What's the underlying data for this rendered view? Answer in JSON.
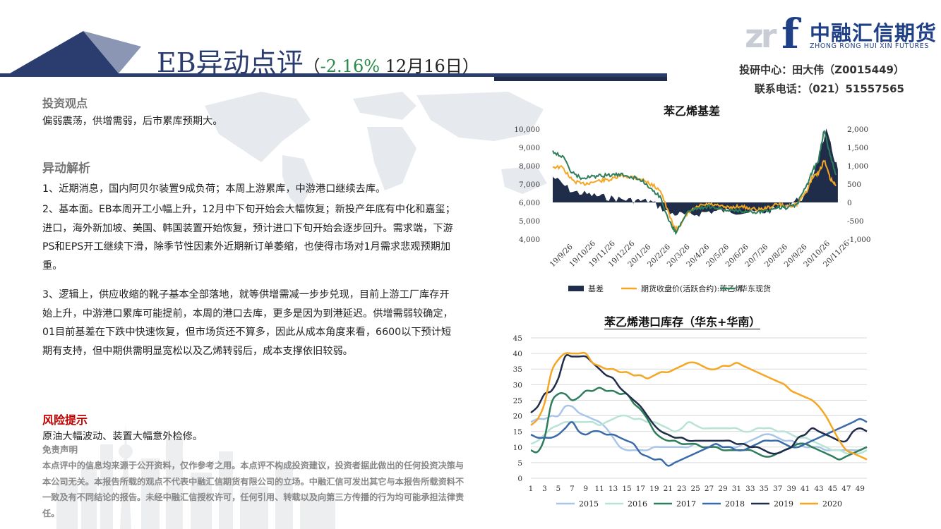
{
  "header": {
    "title_main": "EB异动点评",
    "title_paren_open": "（",
    "title_pct": "-2.16%",
    "title_date": " 12月16日",
    "title_paren_close": "）",
    "logo_mark": "zr",
    "logo_f": "f",
    "logo_cn": "中融汇信期货",
    "logo_en": "ZHONG RONG HUI XIN FUTURES",
    "contact_line1": "投研中心：田大伟（Z0015449）",
    "contact_line2": "联系电话：（021）51557565"
  },
  "content": {
    "view_heading": "投资观点",
    "view_text": "偏弱震荡，供增需弱，后市累库预期大。",
    "analysis_heading": "异动解析",
    "analysis_p1": "1、近期消息，国内阿贝尔装置9成负荷；本周上游累库，中游港口继续去库。",
    "analysis_p2": "2、基本面。EB本周开工小幅上升，12月中下旬开始会大幅恢复；新投产年底有中化和嘉玺；进口，海外新加坡、美国、韩国装置开始恢复，预计进口下旬开始会逐步回升。需求端，下游PS和EPS开工继续下滑，除季节性因素外近期新订单萎缩，也使得市场对1月需求悲观预期加重。",
    "analysis_p3": "3、逻辑上，供应收缩的靴子基本全部落地，就等供增需减一步步兑现，目前上游工厂库存开始上升，中游港口累库可能提前，本周的港口去库，更多是因为到港延迟。供增需弱较确定， 01目前基差在下跌中快速恢复，但市场货还不算多，因此从成本角度来看，6600以下预计短期有支持，但中期供需明显宽松以及乙烯转弱后，成本支撑依旧较弱。",
    "risk_heading": "风险提示",
    "risk_text": "原油大幅波动、装置大幅意外检修。",
    "disclaimer_heading": "免责声明",
    "disclaimer_text": "本点评中的信息均来源于公开资料，仅作参考之用。本点评不构成投资建议，投资者据此做出的任何投资决策与本公司无关。本报告所载的观点不代表中融汇信期货有限公司的立场。中融汇信可发出其它与本报告所载资料不一致及有不同结论的报告。未经中融汇信授权许可，任何引用、转载以及向第三方传播的行为均可能承担法律责任。"
  },
  "colors": {
    "navy": "#1f2d4a",
    "orange": "#f5a623",
    "green": "#2e7d5b",
    "risk_red": "#c00000",
    "brand_blue": "#1f3f86"
  },
  "chart_data": [
    {
      "type": "line",
      "title": "苯乙烯基差",
      "x_tick_labels": [
        "19/9/26",
        "19/10/26",
        "19/11/26",
        "19/12/26",
        "20/1/26",
        "20/2/26",
        "20/3/26",
        "20/4/26",
        "20/5/26",
        "20/6/26",
        "20/7/26",
        "20/8/26",
        "20/9/26",
        "20/10/26",
        "20/11/26"
      ],
      "y_left_ticks": [
        "10,000",
        "9,000",
        "8,000",
        "7,000",
        "6,000",
        "5,000",
        "4,000"
      ],
      "y_right_ticks": [
        "2,000",
        "1,500",
        "1,000",
        "500",
        "0",
        "-500",
        "-1,000"
      ],
      "ylim_left": [
        4000,
        10000
      ],
      "ylim_right": [
        -1000,
        2000
      ],
      "legend_position": "bottom",
      "series": [
        {
          "name": "基差",
          "kind": "area",
          "axis": "right",
          "x": [
            0,
            1,
            2,
            3,
            4,
            5,
            6,
            7,
            8,
            9,
            10,
            11,
            12,
            13,
            14,
            14.6
          ],
          "values": [
            700,
            300,
            200,
            120,
            60,
            30,
            -300,
            -350,
            -250,
            -230,
            -270,
            -250,
            -60,
            180,
            1950,
            900
          ]
        },
        {
          "name": "期货收盘价(活跃合约):苯乙烯",
          "kind": "line",
          "axis": "left",
          "x": [
            0,
            0.5,
            1,
            1.5,
            2,
            2.5,
            3,
            3.5,
            4,
            4.5,
            5,
            5.5,
            6,
            6.3,
            6.6,
            7,
            7.5,
            8,
            8.5,
            9,
            9.5,
            10,
            10.5,
            11,
            11.5,
            12,
            12.5,
            13,
            13.3,
            13.6,
            13.9,
            14.2,
            14.5
          ],
          "values": [
            7950,
            7900,
            7200,
            7000,
            7100,
            7200,
            7250,
            7450,
            7400,
            7300,
            7000,
            6700,
            5200,
            4500,
            4900,
            5500,
            5800,
            5900,
            5800,
            5700,
            5800,
            5700,
            5600,
            5700,
            5900,
            5800,
            5900,
            6600,
            7400,
            7600,
            8300,
            7300,
            6900
          ]
        },
        {
          "name": "华东现货",
          "kind": "line",
          "axis": "left",
          "x": [
            0,
            0.5,
            1,
            1.5,
            2,
            2.5,
            3,
            3.5,
            4,
            4.5,
            5,
            5.5,
            6,
            6.3,
            6.6,
            7,
            7.5,
            8,
            8.5,
            9,
            9.5,
            10,
            10.5,
            11,
            11.5,
            12,
            12.5,
            13,
            13.3,
            13.6,
            13.9,
            14.2,
            14.5
          ],
          "values": [
            8800,
            8500,
            7600,
            7300,
            7400,
            7450,
            7500,
            7500,
            7400,
            7250,
            6800,
            6300,
            4900,
            4400,
            4900,
            5600,
            5700,
            5800,
            5650,
            5550,
            5550,
            5500,
            5500,
            5550,
            5750,
            5700,
            5900,
            6900,
            7700,
            8300,
            9950,
            8600,
            7500
          ]
        }
      ]
    },
    {
      "type": "line",
      "title": "苯乙烯港口库存（华东+华南）",
      "x_tick_labels": [
        "1",
        "3",
        "5",
        "7",
        "9",
        "11",
        "13",
        "15",
        "17",
        "19",
        "21",
        "23",
        "25",
        "27",
        "29",
        "31",
        "33",
        "35",
        "37",
        "39",
        "41",
        "43",
        "45",
        "47",
        "49"
      ],
      "y_ticks": [
        "45",
        "40",
        "35",
        "30",
        "25",
        "20",
        "15",
        "10",
        "5",
        "0"
      ],
      "ylim": [
        0,
        45
      ],
      "xlim": [
        1,
        50
      ],
      "legend_position": "bottom",
      "series": [
        {
          "name": "2015",
          "values": [
            18,
            19,
            19,
            20,
            20,
            23,
            23,
            21,
            20,
            19,
            18,
            16,
            13,
            10,
            9,
            9,
            9,
            9,
            10,
            10,
            10,
            10,
            10,
            10,
            11,
            10,
            10,
            10,
            10,
            10,
            10,
            11,
            12,
            13,
            14,
            14,
            13,
            12,
            12,
            11,
            10,
            10,
            10,
            9,
            9,
            9,
            9,
            9,
            9,
            10
          ]
        },
        {
          "name": "2016",
          "values": [
            11,
            12,
            14,
            16,
            17,
            18,
            18,
            18,
            18,
            18,
            17,
            18,
            19,
            20,
            20,
            19,
            19,
            18,
            18,
            17,
            16,
            15,
            16,
            18,
            17,
            16,
            16,
            16,
            16,
            16,
            16,
            15,
            15,
            16,
            16,
            16,
            15,
            15,
            14,
            13,
            13,
            12,
            11,
            10,
            9,
            9,
            8,
            8,
            8,
            9
          ]
        },
        {
          "name": "2017",
          "values": [
            9,
            8.5,
            13,
            24,
            27,
            27,
            25,
            26,
            28,
            28,
            29,
            28,
            28,
            27,
            27,
            24,
            22,
            19,
            15,
            13,
            12,
            12,
            11,
            11,
            11,
            10,
            10,
            10,
            9,
            9,
            9,
            9,
            9,
            8,
            7,
            7,
            8,
            9,
            10,
            11,
            11,
            10,
            9,
            8,
            7,
            6,
            7,
            8,
            9,
            10
          ]
        },
        {
          "name": "2018",
          "values": [
            14,
            13,
            13,
            13,
            14,
            16,
            18,
            15,
            14,
            15,
            15,
            14,
            14,
            13,
            12,
            11,
            8,
            7,
            6,
            6,
            4,
            5,
            6,
            7,
            8,
            9,
            10,
            11,
            10,
            10,
            9,
            9,
            10,
            11,
            12,
            12,
            12,
            11,
            10,
            10,
            11,
            12,
            13,
            14,
            15,
            16,
            17,
            18,
            19,
            18
          ]
        },
        {
          "name": "2019",
          "values": [
            21,
            23,
            27,
            28,
            32,
            39,
            39,
            39,
            39,
            37,
            35,
            33,
            32,
            29,
            27,
            25,
            23,
            20,
            17,
            15,
            14,
            13,
            13,
            12,
            12,
            12,
            12,
            12,
            12,
            12,
            11,
            11,
            10,
            10,
            9,
            8,
            8,
            9,
            10,
            13,
            14,
            16,
            15,
            14,
            13,
            12,
            12,
            15,
            16,
            15
          ]
        },
        {
          "name": "2020",
          "values": [
            17,
            19,
            24,
            34,
            38,
            40,
            40,
            40,
            40,
            37,
            36,
            35,
            35,
            34,
            34,
            33,
            33,
            32,
            33,
            34,
            34,
            35,
            36,
            37,
            37,
            36,
            35,
            35,
            36,
            36,
            37,
            36,
            35,
            34,
            33,
            32,
            31,
            30,
            28,
            27,
            26,
            25,
            23,
            20,
            16,
            12,
            9,
            8,
            7,
            6
          ]
        }
      ]
    }
  ]
}
